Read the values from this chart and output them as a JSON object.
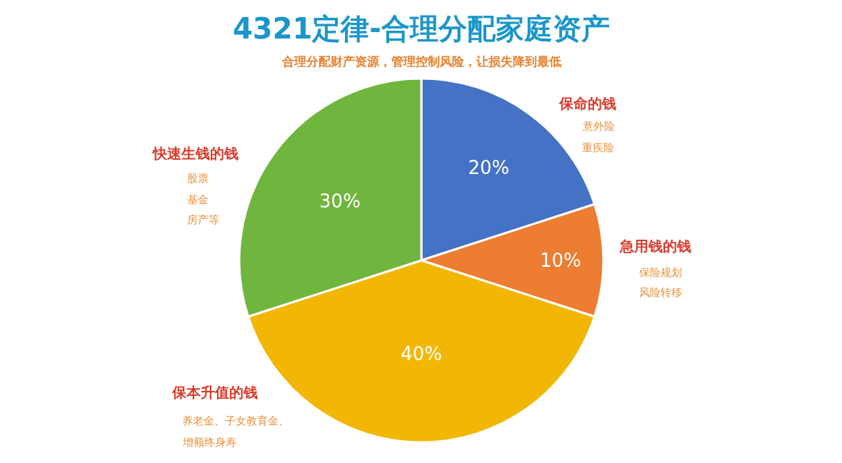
{
  "chart_data": {
    "type": "pie",
    "title": "4321定律-合理分配家庭资产",
    "subtitle": "合理分配财产资源，管理控制风险，让损失降到最低",
    "categories": [
      "保命的钱",
      "急用钱的钱",
      "保本升值的钱",
      "快速生钱的钱"
    ],
    "values": [
      20,
      10,
      40,
      30
    ],
    "colors": [
      "#4472c4",
      "#ed7d31",
      "#f2b705",
      "#70b63e"
    ],
    "value_labels": [
      "20%",
      "10%",
      "40%",
      "30%"
    ],
    "annotations": [
      "意外险",
      "重疾险",
      "保险规划",
      "风险转移",
      "养老金、子女教育金、",
      "增额终身寿",
      "股票",
      "基金",
      "房产等"
    ],
    "legend": false
  }
}
